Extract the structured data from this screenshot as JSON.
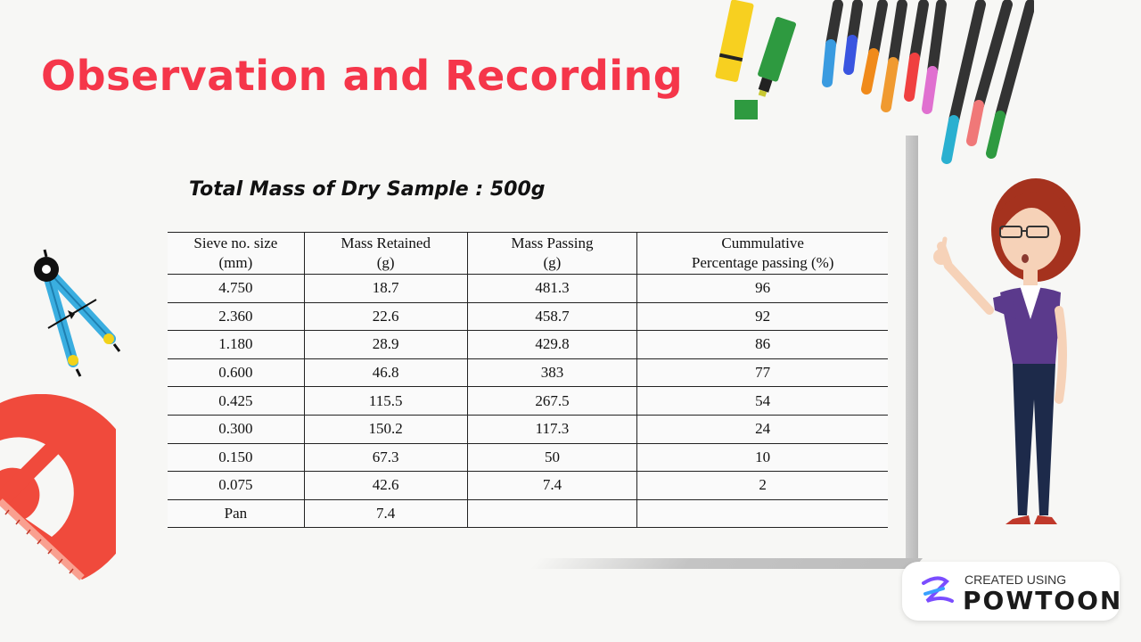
{
  "title": "Observation and Recording",
  "subtitle": "Total Mass of Dry Sample : 500g",
  "table": {
    "headers": [
      {
        "line1": "Sieve no. size",
        "line2": "(mm)"
      },
      {
        "line1": "Mass Retained",
        "line2": "(g)"
      },
      {
        "line1": "Mass Passing",
        "line2": "(g)"
      },
      {
        "line1": "Cummulative",
        "line2": "Percentage passing (%)"
      }
    ],
    "rows": [
      [
        "4.750",
        "18.7",
        "481.3",
        "96"
      ],
      [
        "2.360",
        "22.6",
        "458.7",
        "92"
      ],
      [
        "1.180",
        "28.9",
        "429.8",
        "86"
      ],
      [
        "0.600",
        "46.8",
        "383",
        "77"
      ],
      [
        "0.425",
        "115.5",
        "267.5",
        "54"
      ],
      [
        "0.300",
        "150.2",
        "117.3",
        "24"
      ],
      [
        "0.150",
        "67.3",
        "50",
        "10"
      ],
      [
        "0.075",
        "42.6",
        "7.4",
        "2"
      ],
      [
        "Pan",
        "7.4",
        "",
        ""
      ]
    ]
  },
  "badge": {
    "line1": "CREATED USING",
    "line2": "POWTOON"
  },
  "colors": {
    "title": "#f5364a",
    "accent_red": "#f04a3c",
    "compass": "#3aaee0",
    "character_top": "#5b3a8c",
    "character_pants": "#1d2a4a"
  }
}
